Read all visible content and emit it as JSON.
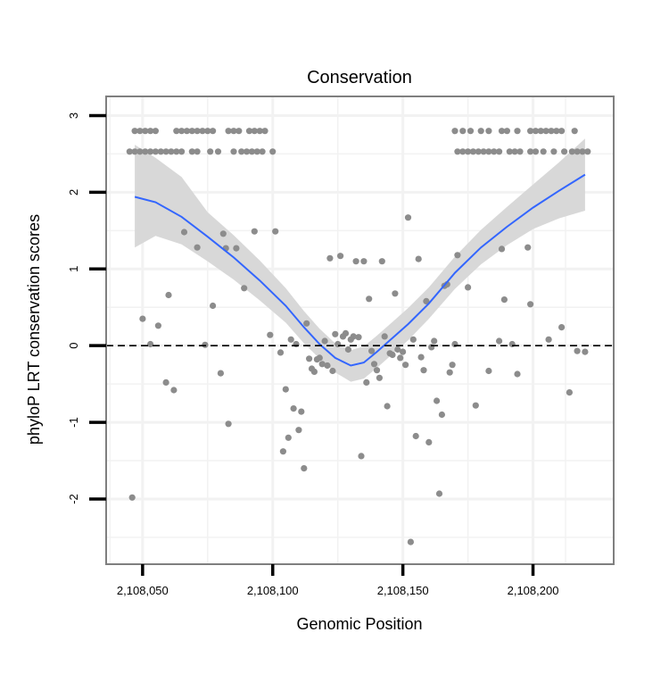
{
  "chart_data": {
    "type": "scatter",
    "title": "Conservation",
    "xlabel": "Genomic Position",
    "ylabel": "phyloP LRT conservation scores",
    "xlim": [
      2108036,
      2108231
    ],
    "ylim": [
      -2.85,
      3.25
    ],
    "x_ticks": [
      {
        "value": 2108050,
        "label": "2,108,050"
      },
      {
        "value": 2108100,
        "label": "2,108,100"
      },
      {
        "value": 2108150,
        "label": "2,108,150"
      },
      {
        "value": 2108200,
        "label": "2,108,200"
      }
    ],
    "y_ticks": [
      {
        "value": -2,
        "label": "-2"
      },
      {
        "value": -1,
        "label": "-1"
      },
      {
        "value": 0,
        "label": "0"
      },
      {
        "value": 1,
        "label": "1"
      },
      {
        "value": 2,
        "label": "2"
      },
      {
        "value": 3,
        "label": "3"
      }
    ],
    "reference_line": {
      "y": 0,
      "style": "dashed"
    },
    "grid": true,
    "colors": {
      "points": "#8c8c8c",
      "smooth": "#3366ff",
      "ribbon": "#d6d6d6",
      "panel_border": "#7f7f7f",
      "grid": "#f2f2f2"
    },
    "smooth": {
      "x": [
        2108047,
        2108055,
        2108065,
        2108075,
        2108085,
        2108095,
        2108105,
        2108112,
        2108118,
        2108124,
        2108130,
        2108135,
        2108140,
        2108146,
        2108152,
        2108160,
        2108170,
        2108180,
        2108190,
        2108200,
        2108210,
        2108220
      ],
      "y": [
        1.94,
        1.87,
        1.68,
        1.42,
        1.15,
        0.85,
        0.52,
        0.24,
        0.02,
        -0.16,
        -0.26,
        -0.22,
        -0.08,
        0.1,
        0.28,
        0.55,
        0.95,
        1.28,
        1.55,
        1.8,
        2.02,
        2.23
      ],
      "lower": [
        1.28,
        1.43,
        1.32,
        1.1,
        0.86,
        0.59,
        0.3,
        0.03,
        -0.17,
        -0.35,
        -0.47,
        -0.43,
        -0.29,
        -0.11,
        0.07,
        0.35,
        0.74,
        1.06,
        1.31,
        1.52,
        1.66,
        1.76
      ],
      "upper": [
        2.62,
        2.45,
        2.2,
        1.74,
        1.44,
        1.11,
        0.75,
        0.45,
        0.22,
        0.03,
        -0.06,
        -0.01,
        0.13,
        0.31,
        0.49,
        0.76,
        1.16,
        1.51,
        1.81,
        2.1,
        2.39,
        2.7
      ]
    },
    "series": [
      {
        "name": "phyloP",
        "points": [
          [
            2108047,
            2.8
          ],
          [
            2108049,
            2.8
          ],
          [
            2108051,
            2.8
          ],
          [
            2108053,
            2.8
          ],
          [
            2108055,
            2.8
          ],
          [
            2108063,
            2.8
          ],
          [
            2108065,
            2.8
          ],
          [
            2108067,
            2.8
          ],
          [
            2108069,
            2.8
          ],
          [
            2108071,
            2.8
          ],
          [
            2108073,
            2.8
          ],
          [
            2108075,
            2.8
          ],
          [
            2108077,
            2.8
          ],
          [
            2108083,
            2.8
          ],
          [
            2108085,
            2.8
          ],
          [
            2108087,
            2.8
          ],
          [
            2108091,
            2.8
          ],
          [
            2108093,
            2.8
          ],
          [
            2108095,
            2.8
          ],
          [
            2108097,
            2.8
          ],
          [
            2108045,
            2.53
          ],
          [
            2108047,
            2.53
          ],
          [
            2108049,
            2.53
          ],
          [
            2108051,
            2.53
          ],
          [
            2108053,
            2.53
          ],
          [
            2108055,
            2.53
          ],
          [
            2108057,
            2.53
          ],
          [
            2108059,
            2.53
          ],
          [
            2108061,
            2.53
          ],
          [
            2108063,
            2.53
          ],
          [
            2108065,
            2.53
          ],
          [
            2108069,
            2.53
          ],
          [
            2108071,
            2.53
          ],
          [
            2108076,
            2.53
          ],
          [
            2108079,
            2.53
          ],
          [
            2108085,
            2.53
          ],
          [
            2108088,
            2.53
          ],
          [
            2108090,
            2.53
          ],
          [
            2108092,
            2.53
          ],
          [
            2108094,
            2.53
          ],
          [
            2108096,
            2.53
          ],
          [
            2108100,
            2.53
          ],
          [
            2108170,
            2.8
          ],
          [
            2108173,
            2.8
          ],
          [
            2108176,
            2.8
          ],
          [
            2108180,
            2.8
          ],
          [
            2108183,
            2.8
          ],
          [
            2108188,
            2.8
          ],
          [
            2108190,
            2.8
          ],
          [
            2108194,
            2.8
          ],
          [
            2108199,
            2.8
          ],
          [
            2108201,
            2.8
          ],
          [
            2108203,
            2.8
          ],
          [
            2108205,
            2.8
          ],
          [
            2108207,
            2.8
          ],
          [
            2108209,
            2.8
          ],
          [
            2108211,
            2.8
          ],
          [
            2108216,
            2.8
          ],
          [
            2108171,
            2.53
          ],
          [
            2108173,
            2.53
          ],
          [
            2108175,
            2.53
          ],
          [
            2108177,
            2.53
          ],
          [
            2108179,
            2.53
          ],
          [
            2108181,
            2.53
          ],
          [
            2108183,
            2.53
          ],
          [
            2108185,
            2.53
          ],
          [
            2108187,
            2.53
          ],
          [
            2108191,
            2.53
          ],
          [
            2108193,
            2.53
          ],
          [
            2108195,
            2.53
          ],
          [
            2108199,
            2.53
          ],
          [
            2108201,
            2.53
          ],
          [
            2108204,
            2.53
          ],
          [
            2108208,
            2.53
          ],
          [
            2108212,
            2.53
          ],
          [
            2108215,
            2.53
          ],
          [
            2108217,
            2.53
          ],
          [
            2108219,
            2.53
          ],
          [
            2108221,
            2.53
          ],
          [
            2108046,
            -1.98
          ],
          [
            2108050,
            0.35
          ],
          [
            2108053,
            0.02
          ],
          [
            2108056,
            0.26
          ],
          [
            2108059,
            -0.48
          ],
          [
            2108060,
            0.66
          ],
          [
            2108062,
            -0.58
          ],
          [
            2108066,
            1.48
          ],
          [
            2108071,
            1.28
          ],
          [
            2108074,
            0.01
          ],
          [
            2108077,
            0.52
          ],
          [
            2108080,
            -0.36
          ],
          [
            2108081,
            1.46
          ],
          [
            2108082,
            1.27
          ],
          [
            2108083,
            -1.02
          ],
          [
            2108086,
            1.27
          ],
          [
            2108089,
            0.75
          ],
          [
            2108093,
            1.49
          ],
          [
            2108099,
            0.14
          ],
          [
            2108101,
            1.49
          ],
          [
            2108103,
            -0.09
          ],
          [
            2108104,
            -1.38
          ],
          [
            2108105,
            -0.57
          ],
          [
            2108106,
            -1.2
          ],
          [
            2108107,
            0.08
          ],
          [
            2108108,
            -0.82
          ],
          [
            2108109,
            0.02
          ],
          [
            2108110,
            -1.1
          ],
          [
            2108111,
            -0.86
          ],
          [
            2108112,
            -1.6
          ],
          [
            2108113,
            0.29
          ],
          [
            2108114,
            -0.17
          ],
          [
            2108115,
            -0.3
          ],
          [
            2108116,
            -0.34
          ],
          [
            2108117,
            -0.18
          ],
          [
            2108118,
            -0.16
          ],
          [
            2108119,
            -0.24
          ],
          [
            2108120,
            0.06
          ],
          [
            2108121,
            -0.26
          ],
          [
            2108122,
            1.14
          ],
          [
            2108123,
            -0.33
          ],
          [
            2108124,
            0.15
          ],
          [
            2108125,
            0.02
          ],
          [
            2108126,
            1.17
          ],
          [
            2108127,
            0.12
          ],
          [
            2108128,
            0.16
          ],
          [
            2108129,
            -0.05
          ],
          [
            2108130,
            0.08
          ],
          [
            2108131,
            0.12
          ],
          [
            2108132,
            1.1
          ],
          [
            2108133,
            0.11
          ],
          [
            2108134,
            -1.44
          ],
          [
            2108135,
            1.1
          ],
          [
            2108136,
            -0.48
          ],
          [
            2108137,
            0.61
          ],
          [
            2108138,
            -0.07
          ],
          [
            2108139,
            -0.24
          ],
          [
            2108140,
            -0.32
          ],
          [
            2108141,
            -0.42
          ],
          [
            2108142,
            1.1
          ],
          [
            2108143,
            0.12
          ],
          [
            2108144,
            -0.79
          ],
          [
            2108145,
            -0.1
          ],
          [
            2108146,
            -0.12
          ],
          [
            2108147,
            0.68
          ],
          [
            2108148,
            -0.05
          ],
          [
            2108149,
            -0.16
          ],
          [
            2108150,
            -0.08
          ],
          [
            2108151,
            -0.25
          ],
          [
            2108152,
            1.67
          ],
          [
            2108153,
            -2.56
          ],
          [
            2108154,
            0.08
          ],
          [
            2108155,
            -1.18
          ],
          [
            2108156,
            1.13
          ],
          [
            2108157,
            -0.15
          ],
          [
            2108158,
            -0.32
          ],
          [
            2108159,
            0.58
          ],
          [
            2108160,
            -1.26
          ],
          [
            2108161,
            -0.02
          ],
          [
            2108162,
            0.06
          ],
          [
            2108163,
            -0.72
          ],
          [
            2108164,
            -1.93
          ],
          [
            2108165,
            -0.9
          ],
          [
            2108166,
            0.78
          ],
          [
            2108167,
            0.8
          ],
          [
            2108168,
            -0.35
          ],
          [
            2108169,
            -0.25
          ],
          [
            2108170,
            0.02
          ],
          [
            2108171,
            1.18
          ],
          [
            2108175,
            0.76
          ],
          [
            2108178,
            -0.78
          ],
          [
            2108183,
            -0.33
          ],
          [
            2108187,
            0.06
          ],
          [
            2108188,
            1.26
          ],
          [
            2108189,
            0.6
          ],
          [
            2108192,
            0.02
          ],
          [
            2108194,
            -0.37
          ],
          [
            2108198,
            1.28
          ],
          [
            2108199,
            0.54
          ],
          [
            2108206,
            0.08
          ],
          [
            2108211,
            0.24
          ],
          [
            2108214,
            -0.61
          ],
          [
            2108217,
            -0.07
          ],
          [
            2108220,
            -0.08
          ]
        ]
      }
    ]
  }
}
